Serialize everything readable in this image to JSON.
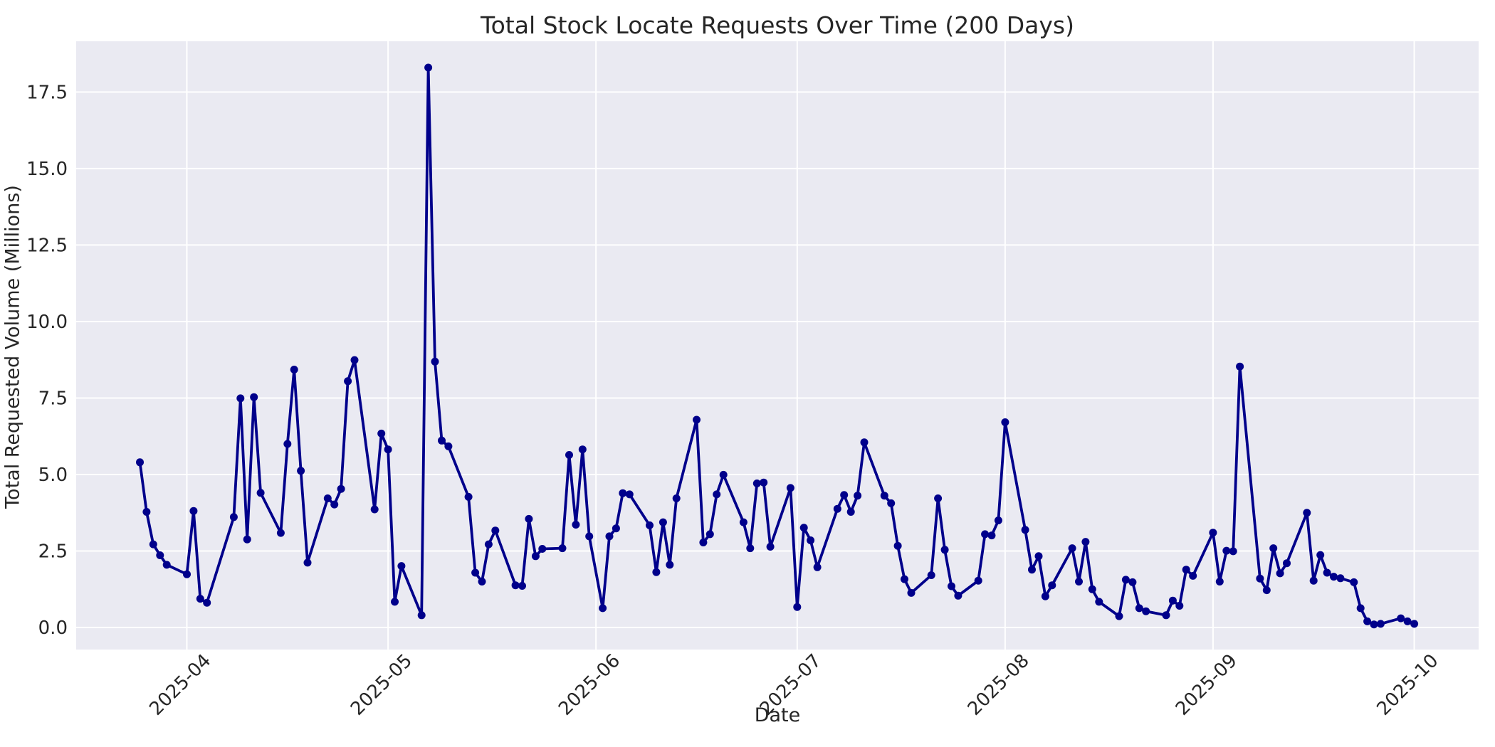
{
  "chart_data": {
    "type": "line",
    "title": "Total Stock Locate Requests Over Time (200 Days)",
    "xlabel": "Date",
    "ylabel": "Total Requested Volume (Millions)",
    "grid": true,
    "legend_position": "none",
    "line_color": "#00008b",
    "marker": "circle",
    "plot_background": "#eaeaf2",
    "grid_color": "#ffffff",
    "text_color": "#262626",
    "y_ticks": [
      0.0,
      2.5,
      5.0,
      7.5,
      10.0,
      12.5,
      15.0,
      17.5
    ],
    "y_tick_labels": [
      "0.0",
      "2.5",
      "5.0",
      "7.5",
      "10.0",
      "12.5",
      "15.0",
      "17.5"
    ],
    "x_tick_dates": [
      "2025-04-01",
      "2025-05-01",
      "2025-06-01",
      "2025-07-01",
      "2025-08-01",
      "2025-09-01",
      "2025-10-01"
    ],
    "x_tick_labels": [
      "2025-04",
      "2025-05",
      "2025-06",
      "2025-07",
      "2025-08",
      "2025-09",
      "2025-10"
    ],
    "ylim": [
      -0.72,
      19.16
    ],
    "xlim_days_from_2025_04_01": [
      -16.5,
      192.6
    ],
    "series": [
      {
        "name": "Total Requested Volume",
        "points": [
          [
            "2025-03-25",
            5.4
          ],
          [
            "2025-03-26",
            3.78
          ],
          [
            "2025-03-27",
            2.72
          ],
          [
            "2025-03-28",
            2.36
          ],
          [
            "2025-03-29",
            2.05
          ],
          [
            "2025-04-01",
            1.74
          ],
          [
            "2025-04-02",
            3.81
          ],
          [
            "2025-04-03",
            0.94
          ],
          [
            "2025-04-04",
            0.81
          ],
          [
            "2025-04-08",
            3.61
          ],
          [
            "2025-04-09",
            7.49
          ],
          [
            "2025-04-10",
            2.88
          ],
          [
            "2025-04-11",
            7.53
          ],
          [
            "2025-04-12",
            4.4
          ],
          [
            "2025-04-15",
            3.09
          ],
          [
            "2025-04-16",
            6.0
          ],
          [
            "2025-04-17",
            8.43
          ],
          [
            "2025-04-18",
            5.12
          ],
          [
            "2025-04-19",
            2.12
          ],
          [
            "2025-04-22",
            4.22
          ],
          [
            "2025-04-23",
            4.02
          ],
          [
            "2025-04-24",
            4.53
          ],
          [
            "2025-04-25",
            8.05
          ],
          [
            "2025-04-26",
            8.74
          ],
          [
            "2025-04-29",
            3.86
          ],
          [
            "2025-04-30",
            6.34
          ],
          [
            "2025-05-01",
            5.82
          ],
          [
            "2025-05-02",
            0.84
          ],
          [
            "2025-05-03",
            2.01
          ],
          [
            "2025-05-06",
            0.4
          ],
          [
            "2025-05-07",
            18.3
          ],
          [
            "2025-05-08",
            8.69
          ],
          [
            "2025-05-09",
            6.11
          ],
          [
            "2025-05-10",
            5.92
          ],
          [
            "2025-05-13",
            4.27
          ],
          [
            "2025-05-14",
            1.79
          ],
          [
            "2025-05-15",
            1.5
          ],
          [
            "2025-05-16",
            2.72
          ],
          [
            "2025-05-17",
            3.17
          ],
          [
            "2025-05-20",
            1.38
          ],
          [
            "2025-05-21",
            1.36
          ],
          [
            "2025-05-22",
            3.55
          ],
          [
            "2025-05-23",
            2.33
          ],
          [
            "2025-05-24",
            2.57
          ],
          [
            "2025-05-27",
            2.59
          ],
          [
            "2025-05-28",
            5.64
          ],
          [
            "2025-05-29",
            3.36
          ],
          [
            "2025-05-30",
            5.82
          ],
          [
            "2025-05-31",
            2.98
          ],
          [
            "2025-06-02",
            0.63
          ],
          [
            "2025-06-03",
            2.98
          ],
          [
            "2025-06-04",
            3.24
          ],
          [
            "2025-06-05",
            4.39
          ],
          [
            "2025-06-06",
            4.35
          ],
          [
            "2025-06-09",
            3.34
          ],
          [
            "2025-06-10",
            1.81
          ],
          [
            "2025-06-11",
            3.44
          ],
          [
            "2025-06-12",
            2.05
          ],
          [
            "2025-06-13",
            4.22
          ],
          [
            "2025-06-16",
            6.79
          ],
          [
            "2025-06-17",
            2.78
          ],
          [
            "2025-06-18",
            3.05
          ],
          [
            "2025-06-19",
            4.35
          ],
          [
            "2025-06-20",
            4.99
          ],
          [
            "2025-06-23",
            3.44
          ],
          [
            "2025-06-24",
            2.59
          ],
          [
            "2025-06-25",
            4.71
          ],
          [
            "2025-06-26",
            4.74
          ],
          [
            "2025-06-27",
            2.64
          ],
          [
            "2025-06-30",
            4.56
          ],
          [
            "2025-07-01",
            0.67
          ],
          [
            "2025-07-02",
            3.26
          ],
          [
            "2025-07-03",
            2.85
          ],
          [
            "2025-07-04",
            1.97
          ],
          [
            "2025-07-07",
            3.88
          ],
          [
            "2025-07-08",
            4.33
          ],
          [
            "2025-07-09",
            3.78
          ],
          [
            "2025-07-10",
            4.31
          ],
          [
            "2025-07-11",
            6.05
          ],
          [
            "2025-07-14",
            4.31
          ],
          [
            "2025-07-15",
            4.06
          ],
          [
            "2025-07-16",
            2.67
          ],
          [
            "2025-07-17",
            1.58
          ],
          [
            "2025-07-18",
            1.13
          ],
          [
            "2025-07-21",
            1.71
          ],
          [
            "2025-07-22",
            4.22
          ],
          [
            "2025-07-23",
            2.54
          ],
          [
            "2025-07-24",
            1.35
          ],
          [
            "2025-07-25",
            1.04
          ],
          [
            "2025-07-28",
            1.53
          ],
          [
            "2025-07-29",
            3.05
          ],
          [
            "2025-07-30",
            3.01
          ],
          [
            "2025-07-31",
            3.5
          ],
          [
            "2025-08-01",
            6.71
          ],
          [
            "2025-08-04",
            3.19
          ],
          [
            "2025-08-05",
            1.89
          ],
          [
            "2025-08-06",
            2.33
          ],
          [
            "2025-08-07",
            1.02
          ],
          [
            "2025-08-08",
            1.38
          ],
          [
            "2025-08-11",
            2.59
          ],
          [
            "2025-08-12",
            1.5
          ],
          [
            "2025-08-13",
            2.8
          ],
          [
            "2025-08-14",
            1.25
          ],
          [
            "2025-08-15",
            0.84
          ],
          [
            "2025-08-18",
            0.37
          ],
          [
            "2025-08-19",
            1.56
          ],
          [
            "2025-08-20",
            1.48
          ],
          [
            "2025-08-21",
            0.63
          ],
          [
            "2025-08-22",
            0.53
          ],
          [
            "2025-08-25",
            0.4
          ],
          [
            "2025-08-26",
            0.88
          ],
          [
            "2025-08-27",
            0.71
          ],
          [
            "2025-08-28",
            1.89
          ],
          [
            "2025-08-29",
            1.69
          ],
          [
            "2025-09-01",
            3.1
          ],
          [
            "2025-09-02",
            1.5
          ],
          [
            "2025-09-03",
            2.51
          ],
          [
            "2025-09-04",
            2.49
          ],
          [
            "2025-09-05",
            8.53
          ],
          [
            "2025-09-08",
            1.6
          ],
          [
            "2025-09-09",
            1.22
          ],
          [
            "2025-09-10",
            2.59
          ],
          [
            "2025-09-11",
            1.77
          ],
          [
            "2025-09-12",
            2.1
          ],
          [
            "2025-09-15",
            3.75
          ],
          [
            "2025-09-16",
            1.53
          ],
          [
            "2025-09-17",
            2.37
          ],
          [
            "2025-09-18",
            1.79
          ],
          [
            "2025-09-19",
            1.66
          ],
          [
            "2025-09-20",
            1.61
          ],
          [
            "2025-09-22",
            1.48
          ],
          [
            "2025-09-23",
            0.63
          ],
          [
            "2025-09-24",
            0.2
          ],
          [
            "2025-09-25",
            0.1
          ],
          [
            "2025-09-26",
            0.12
          ],
          [
            "2025-09-29",
            0.3
          ],
          [
            "2025-09-30",
            0.2
          ],
          [
            "2025-10-01",
            0.12
          ]
        ]
      }
    ]
  }
}
